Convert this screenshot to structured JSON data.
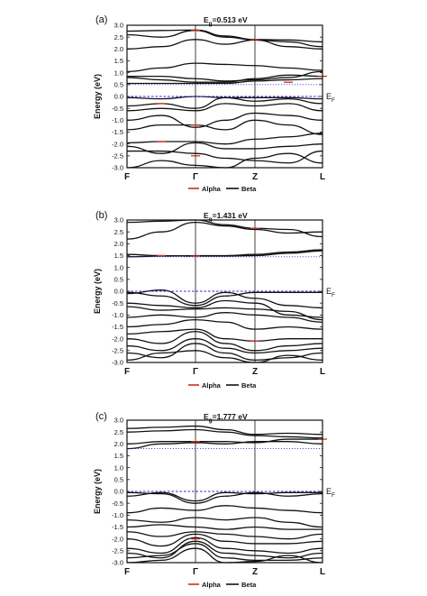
{
  "chart_data": [
    {
      "type": "line",
      "panel_label": "(a)",
      "title_prefix": "E",
      "title_sub": "g",
      "title_value": "=0.513 eV",
      "ylabel": "Energy (eV)",
      "ylim": [
        -3.0,
        3.0
      ],
      "yticks": [
        "3.0",
        "2.5",
        "2.0",
        "1.5",
        "1.0",
        "0.5",
        "0.0",
        "-0.5",
        "-1.0",
        "-1.5",
        "-2.0",
        "-2.5",
        "-3.0"
      ],
      "kpoints": [
        "F",
        "Γ",
        "Z",
        "L"
      ],
      "fermi_label": "E",
      "fermi_sub": "F",
      "fermi_level": 0.0,
      "fermi_style": "dashed",
      "cbm_dotted_level": 0.5,
      "legend": [
        "Alpha",
        "Beta"
      ],
      "colors": {
        "alpha": "#d42a1e",
        "beta": "#111111",
        "fermi": "#2a2ad6"
      },
      "bands": [
        [
          2.75,
          2.78,
          2.8,
          2.55,
          2.4,
          2.38,
          2.3
        ],
        [
          2.6,
          2.5,
          2.78,
          2.5,
          2.38,
          2.3,
          2.1
        ],
        [
          2.0,
          2.1,
          2.4,
          2.2,
          2.38,
          2.1,
          2.0
        ],
        [
          1.05,
          1.2,
          1.4,
          1.35,
          1.3,
          1.2,
          1.1
        ],
        [
          0.85,
          0.85,
          0.75,
          0.65,
          0.7,
          0.8,
          1.05
        ],
        [
          0.8,
          0.7,
          0.6,
          0.6,
          0.75,
          0.9,
          0.85
        ],
        [
          0.55,
          0.55,
          0.55,
          0.55,
          0.65,
          0.7,
          0.75
        ],
        [
          -0.05,
          -0.1,
          0.0,
          -0.05,
          -0.2,
          -0.1,
          -0.3
        ],
        [
          -0.4,
          -0.3,
          -0.5,
          -0.05,
          -0.05,
          -0.05,
          -0.1
        ],
        [
          -0.6,
          -0.5,
          -0.6,
          -0.3,
          -0.4,
          -0.3,
          -0.6
        ],
        [
          -1.0,
          -0.8,
          -1.3,
          -1.0,
          -0.7,
          -0.8,
          -1.0
        ],
        [
          -1.4,
          -1.2,
          -1.2,
          -1.4,
          -1.0,
          -1.2,
          -1.6
        ],
        [
          -1.95,
          -1.9,
          -1.9,
          -2.0,
          -1.8,
          -1.7,
          -1.55
        ],
        [
          -2.1,
          -2.4,
          -1.95,
          -2.2,
          -2.2,
          -2.1,
          -2.0
        ],
        [
          -2.3,
          -2.3,
          -2.4,
          -2.6,
          -2.7,
          -2.8,
          -2.3
        ],
        [
          -3.0,
          -2.7,
          -2.9,
          -3.0,
          -2.6,
          -2.4,
          -2.8
        ]
      ],
      "alpha_highlights": [
        [
          2,
          2.78
        ],
        [
          4,
          2.4
        ],
        [
          5,
          0.6
        ],
        [
          1,
          -0.3
        ],
        [
          2,
          -1.2
        ],
        [
          1,
          -1.9
        ],
        [
          2,
          -2.5
        ],
        [
          6,
          0.85
        ]
      ]
    },
    {
      "type": "line",
      "panel_label": "(b)",
      "title_prefix": "E",
      "title_sub": "g",
      "title_value": "=1.431 eV",
      "ylabel": "Energy (eV)",
      "ylim": [
        -3.0,
        3.0
      ],
      "yticks": [
        "3.0",
        "2.5",
        "2.0",
        "1.5",
        "1.0",
        "0.5",
        "0.0",
        "-0.5",
        "-1.0",
        "-1.5",
        "-2.0",
        "-2.5",
        "-3.0"
      ],
      "kpoints": [
        "F",
        "Γ",
        "Z",
        "L"
      ],
      "fermi_label": "E",
      "fermi_sub": "F",
      "fermi_level": 0.0,
      "fermi_style": "dashed",
      "cbm_dotted_level": 1.45,
      "legend": [
        "Alpha",
        "Beta"
      ],
      "colors": {
        "alpha": "#d42a1e",
        "beta": "#111111",
        "fermi": "#2a2ad6"
      },
      "bands": [
        [
          2.9,
          2.95,
          3.0,
          2.8,
          2.65,
          2.6,
          2.3
        ],
        [
          2.2,
          2.5,
          2.9,
          2.75,
          2.6,
          2.45,
          2.5
        ],
        [
          1.55,
          1.5,
          1.48,
          1.48,
          1.5,
          1.6,
          1.7
        ],
        [
          1.45,
          1.48,
          1.5,
          1.5,
          1.55,
          1.65,
          1.75
        ],
        [
          -0.05,
          -0.2,
          -0.6,
          -0.2,
          -0.05,
          -0.05,
          -0.05
        ],
        [
          -0.1,
          0.05,
          -0.5,
          -0.05,
          -0.3,
          -0.6,
          -0.7
        ],
        [
          -0.5,
          -0.6,
          -0.7,
          -0.4,
          -0.5,
          -1.0,
          -1.1
        ],
        [
          -0.65,
          -0.8,
          -0.75,
          -0.7,
          -0.75,
          -0.85,
          -1.2
        ],
        [
          -1.1,
          -1.0,
          -1.1,
          -0.9,
          -1.0,
          -1.1,
          -1.3
        ],
        [
          -1.5,
          -1.4,
          -1.2,
          -1.3,
          -1.6,
          -1.5,
          -1.6
        ],
        [
          -1.8,
          -1.7,
          -1.6,
          -2.0,
          -2.1,
          -2.0,
          -2.0
        ],
        [
          -2.0,
          -2.2,
          -1.7,
          -2.2,
          -2.5,
          -2.3,
          -2.2
        ],
        [
          -2.3,
          -2.5,
          -2.0,
          -2.4,
          -2.6,
          -2.5,
          -2.4
        ],
        [
          -2.6,
          -2.8,
          -2.2,
          -2.6,
          -2.9,
          -2.8,
          -2.6
        ],
        [
          -2.9,
          -2.6,
          -2.5,
          -2.8,
          -3.0,
          -2.7,
          -2.9
        ]
      ],
      "alpha_highlights": [
        [
          2,
          1.48
        ],
        [
          4,
          2.65
        ],
        [
          1,
          1.5
        ],
        [
          4,
          -2.1
        ]
      ]
    },
    {
      "type": "line",
      "panel_label": "(c)",
      "title_prefix": "E",
      "title_sub": "g",
      "title_value": "=1.777 eV",
      "ylabel": "Energy (eV)",
      "ylim": [
        -3.0,
        3.0
      ],
      "yticks": [
        "3.0",
        "2.5",
        "2.0",
        "1.5",
        "1.0",
        "0.5",
        "0.0",
        "-0.5",
        "-1.0",
        "-1.5",
        "-2.0",
        "-2.5",
        "-3.0"
      ],
      "kpoints": [
        "F",
        "Γ",
        "Z",
        "L"
      ],
      "fermi_label": "E",
      "fermi_sub": "F",
      "fermi_level": 0.0,
      "fermi_style": "dashed",
      "cbm_dotted_level": 1.8,
      "legend": [
        "Alpha",
        "Beta"
      ],
      "colors": {
        "alpha": "#d42a1e",
        "beta": "#111111",
        "fermi": "#2a2ad6"
      },
      "bands": [
        [
          2.65,
          2.7,
          2.75,
          2.6,
          2.4,
          2.45,
          2.4
        ],
        [
          2.5,
          2.55,
          2.6,
          2.5,
          2.35,
          2.3,
          2.25
        ],
        [
          2.0,
          2.1,
          2.1,
          2.1,
          2.05,
          2.2,
          2.2
        ],
        [
          1.8,
          2.0,
          2.05,
          2.0,
          2.1,
          2.1,
          2.0
        ],
        [
          -0.05,
          -0.1,
          -0.5,
          -0.2,
          -0.05,
          -0.2,
          -0.1
        ],
        [
          -0.2,
          -0.05,
          -0.4,
          -0.05,
          -0.1,
          -0.05,
          -0.05
        ],
        [
          -0.9,
          -0.7,
          -0.8,
          -0.6,
          -0.7,
          -0.8,
          -0.9
        ],
        [
          -1.2,
          -1.3,
          -1.1,
          -1.2,
          -1.1,
          -1.3,
          -1.5
        ],
        [
          -1.5,
          -1.4,
          -1.5,
          -1.6,
          -1.5,
          -1.6,
          -1.6
        ],
        [
          -1.7,
          -1.9,
          -1.7,
          -1.8,
          -1.9,
          -2.0,
          -1.8
        ],
        [
          -2.0,
          -2.3,
          -1.8,
          -2.1,
          -2.2,
          -2.2,
          -2.1
        ],
        [
          -2.4,
          -2.6,
          -1.95,
          -2.4,
          -2.5,
          -2.6,
          -2.4
        ],
        [
          -2.6,
          -2.8,
          -2.1,
          -2.6,
          -2.7,
          -2.8,
          -2.6
        ],
        [
          -2.8,
          -2.7,
          -2.2,
          -2.8,
          -2.9,
          -2.9,
          -2.8
        ],
        [
          -3.0,
          -2.9,
          -2.4,
          -3.0,
          -2.95,
          -2.7,
          -3.0
        ]
      ],
      "alpha_highlights": [
        [
          2,
          2.1
        ],
        [
          6,
          2.2
        ],
        [
          2,
          -2.0
        ]
      ]
    }
  ]
}
